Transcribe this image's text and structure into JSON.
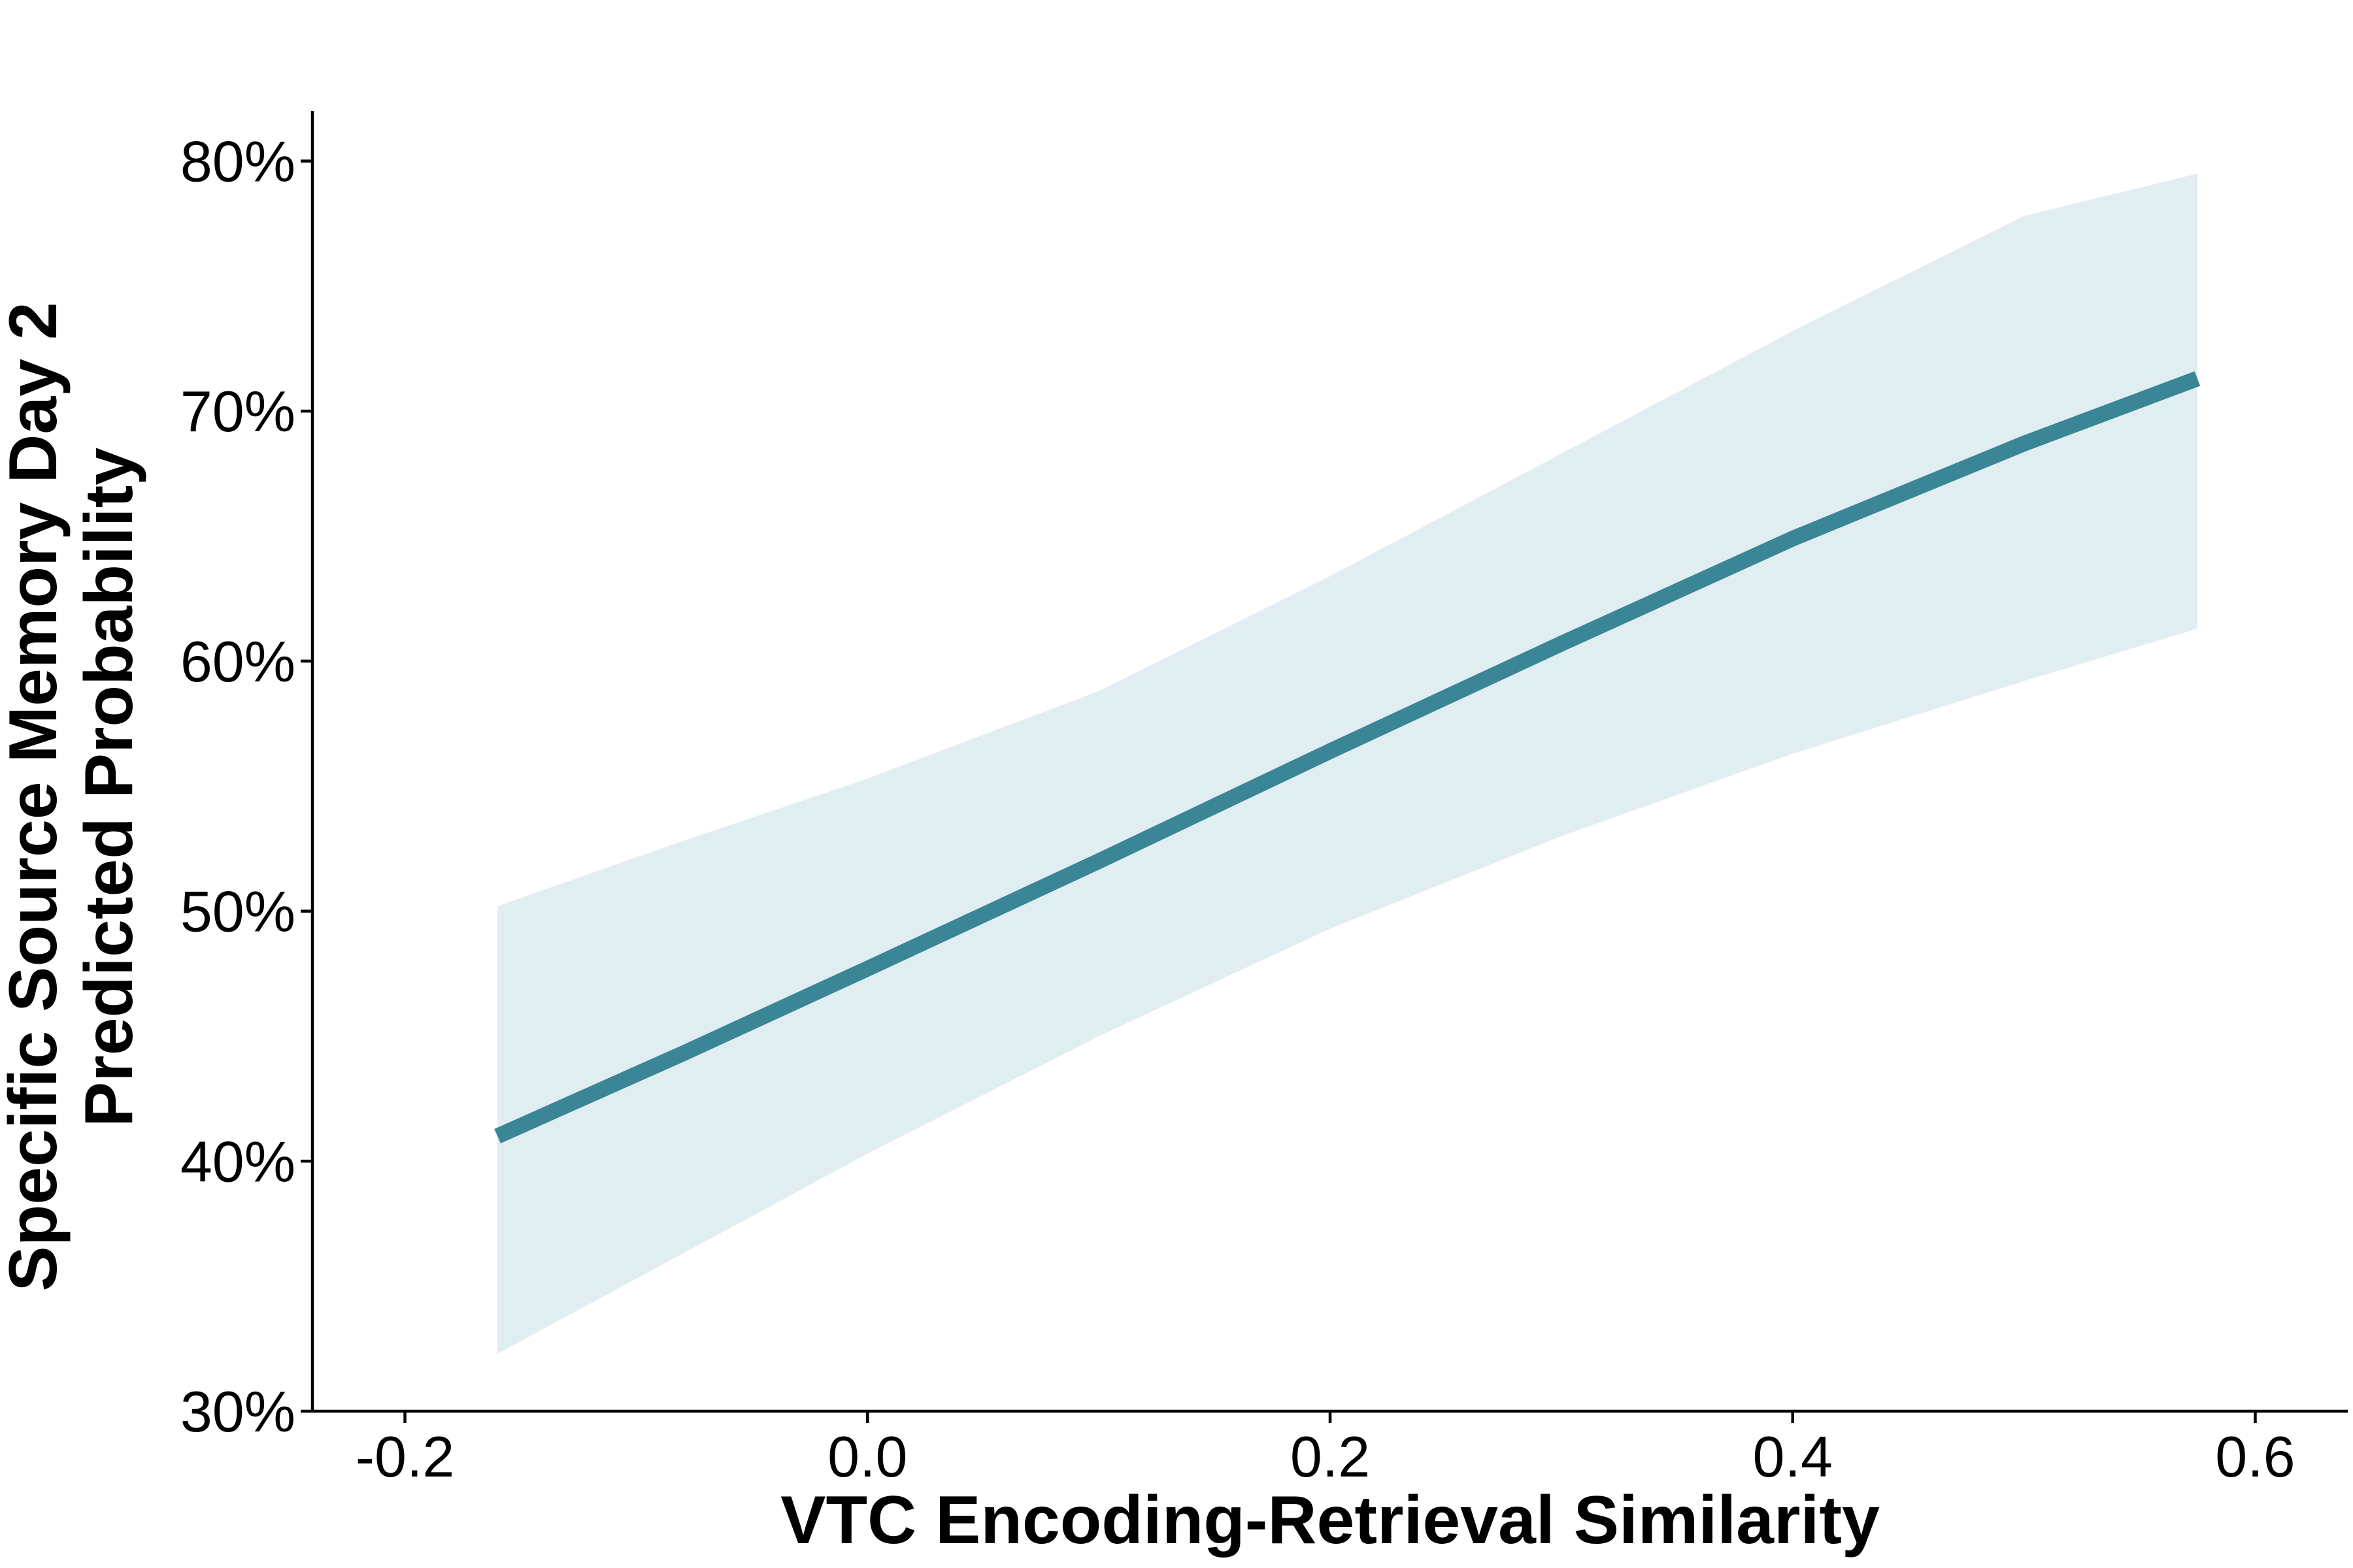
{
  "chart_data": {
    "type": "line",
    "title": "",
    "xlabel": "VTC Encoding-Retrieval Similarity",
    "ylabel_lines": [
      "Specific Source Memory Day 2",
      "Predicted Probability"
    ],
    "xlim": [
      -0.24,
      0.64
    ],
    "ylim": [
      0.3,
      0.82
    ],
    "x_ticks": [
      -0.2,
      0.0,
      0.2,
      0.4,
      0.6
    ],
    "x_tick_labels": [
      "-0.2",
      "0.0",
      "0.2",
      "0.4",
      "0.6"
    ],
    "y_ticks": [
      0.3,
      0.4,
      0.5,
      0.6,
      0.7,
      0.8
    ],
    "y_tick_labels": [
      "30%",
      "40%",
      "50%",
      "60%",
      "70%",
      "80%"
    ],
    "grid": false,
    "legend": "none",
    "line_color": "#3b8696",
    "ribbon_color": "#e0edf1",
    "series": [
      {
        "x": [
          -0.16,
          -0.08,
          0.0,
          0.1,
          0.2,
          0.3,
          0.4,
          0.5,
          0.575
        ],
        "y": [
          0.41,
          0.443,
          0.477,
          0.52,
          0.564,
          0.607,
          0.649,
          0.687,
          0.713
        ],
        "lower": [
          0.323,
          0.363,
          0.403,
          0.45,
          0.493,
          0.53,
          0.563,
          0.592,
          0.613
        ],
        "upper": [
          0.502,
          0.528,
          0.553,
          0.588,
          0.634,
          0.683,
          0.732,
          0.778,
          0.795
        ]
      }
    ]
  }
}
